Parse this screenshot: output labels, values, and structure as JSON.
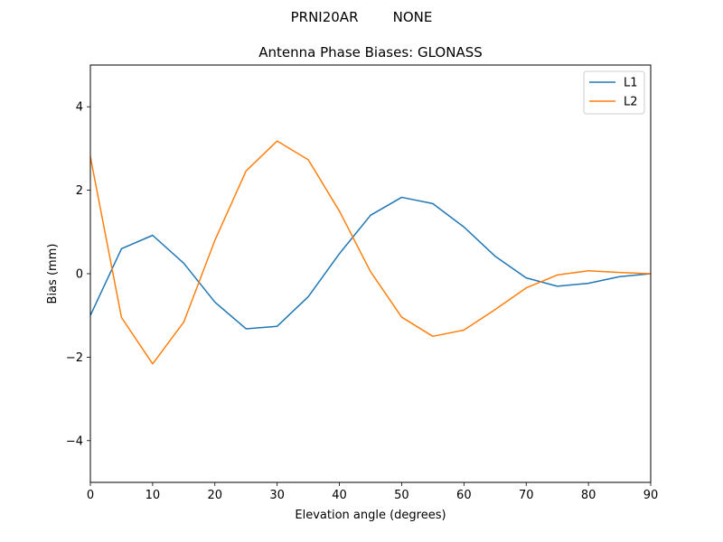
{
  "figure": {
    "suptitle": "PRNI20AR        NONE"
  },
  "chart_data": {
    "type": "line",
    "title": "Antenna Phase Biases: GLONASS",
    "xlabel": "Elevation angle (degrees)",
    "ylabel": "Bias (mm)",
    "xlim": [
      0,
      90
    ],
    "ylim": [
      -5,
      5
    ],
    "xticks": [
      0,
      10,
      20,
      30,
      40,
      50,
      60,
      70,
      80,
      90
    ],
    "yticks": [
      -4,
      -2,
      0,
      2,
      4
    ],
    "ytick_labels": [
      "−4",
      "−2",
      "0",
      "2",
      "4"
    ],
    "grid": false,
    "legend_position": "top-right",
    "x": [
      0,
      5,
      10,
      15,
      20,
      25,
      30,
      35,
      40,
      45,
      50,
      55,
      60,
      65,
      70,
      75,
      80,
      85,
      90
    ],
    "series": [
      {
        "name": "L1",
        "color": "#1f77b4",
        "values": [
          -1.0,
          0.6,
          0.92,
          0.25,
          -0.68,
          -1.32,
          -1.26,
          -0.55,
          0.48,
          1.4,
          1.83,
          1.68,
          1.12,
          0.42,
          -0.1,
          -0.3,
          -0.23,
          -0.07,
          0.0
        ]
      },
      {
        "name": "L2",
        "color": "#ff7f0e",
        "values": [
          2.8,
          -1.05,
          -2.16,
          -1.16,
          0.8,
          2.46,
          3.18,
          2.73,
          1.5,
          0.05,
          -1.04,
          -1.5,
          -1.35,
          -0.86,
          -0.34,
          -0.03,
          0.07,
          0.03,
          0.0
        ]
      }
    ]
  }
}
